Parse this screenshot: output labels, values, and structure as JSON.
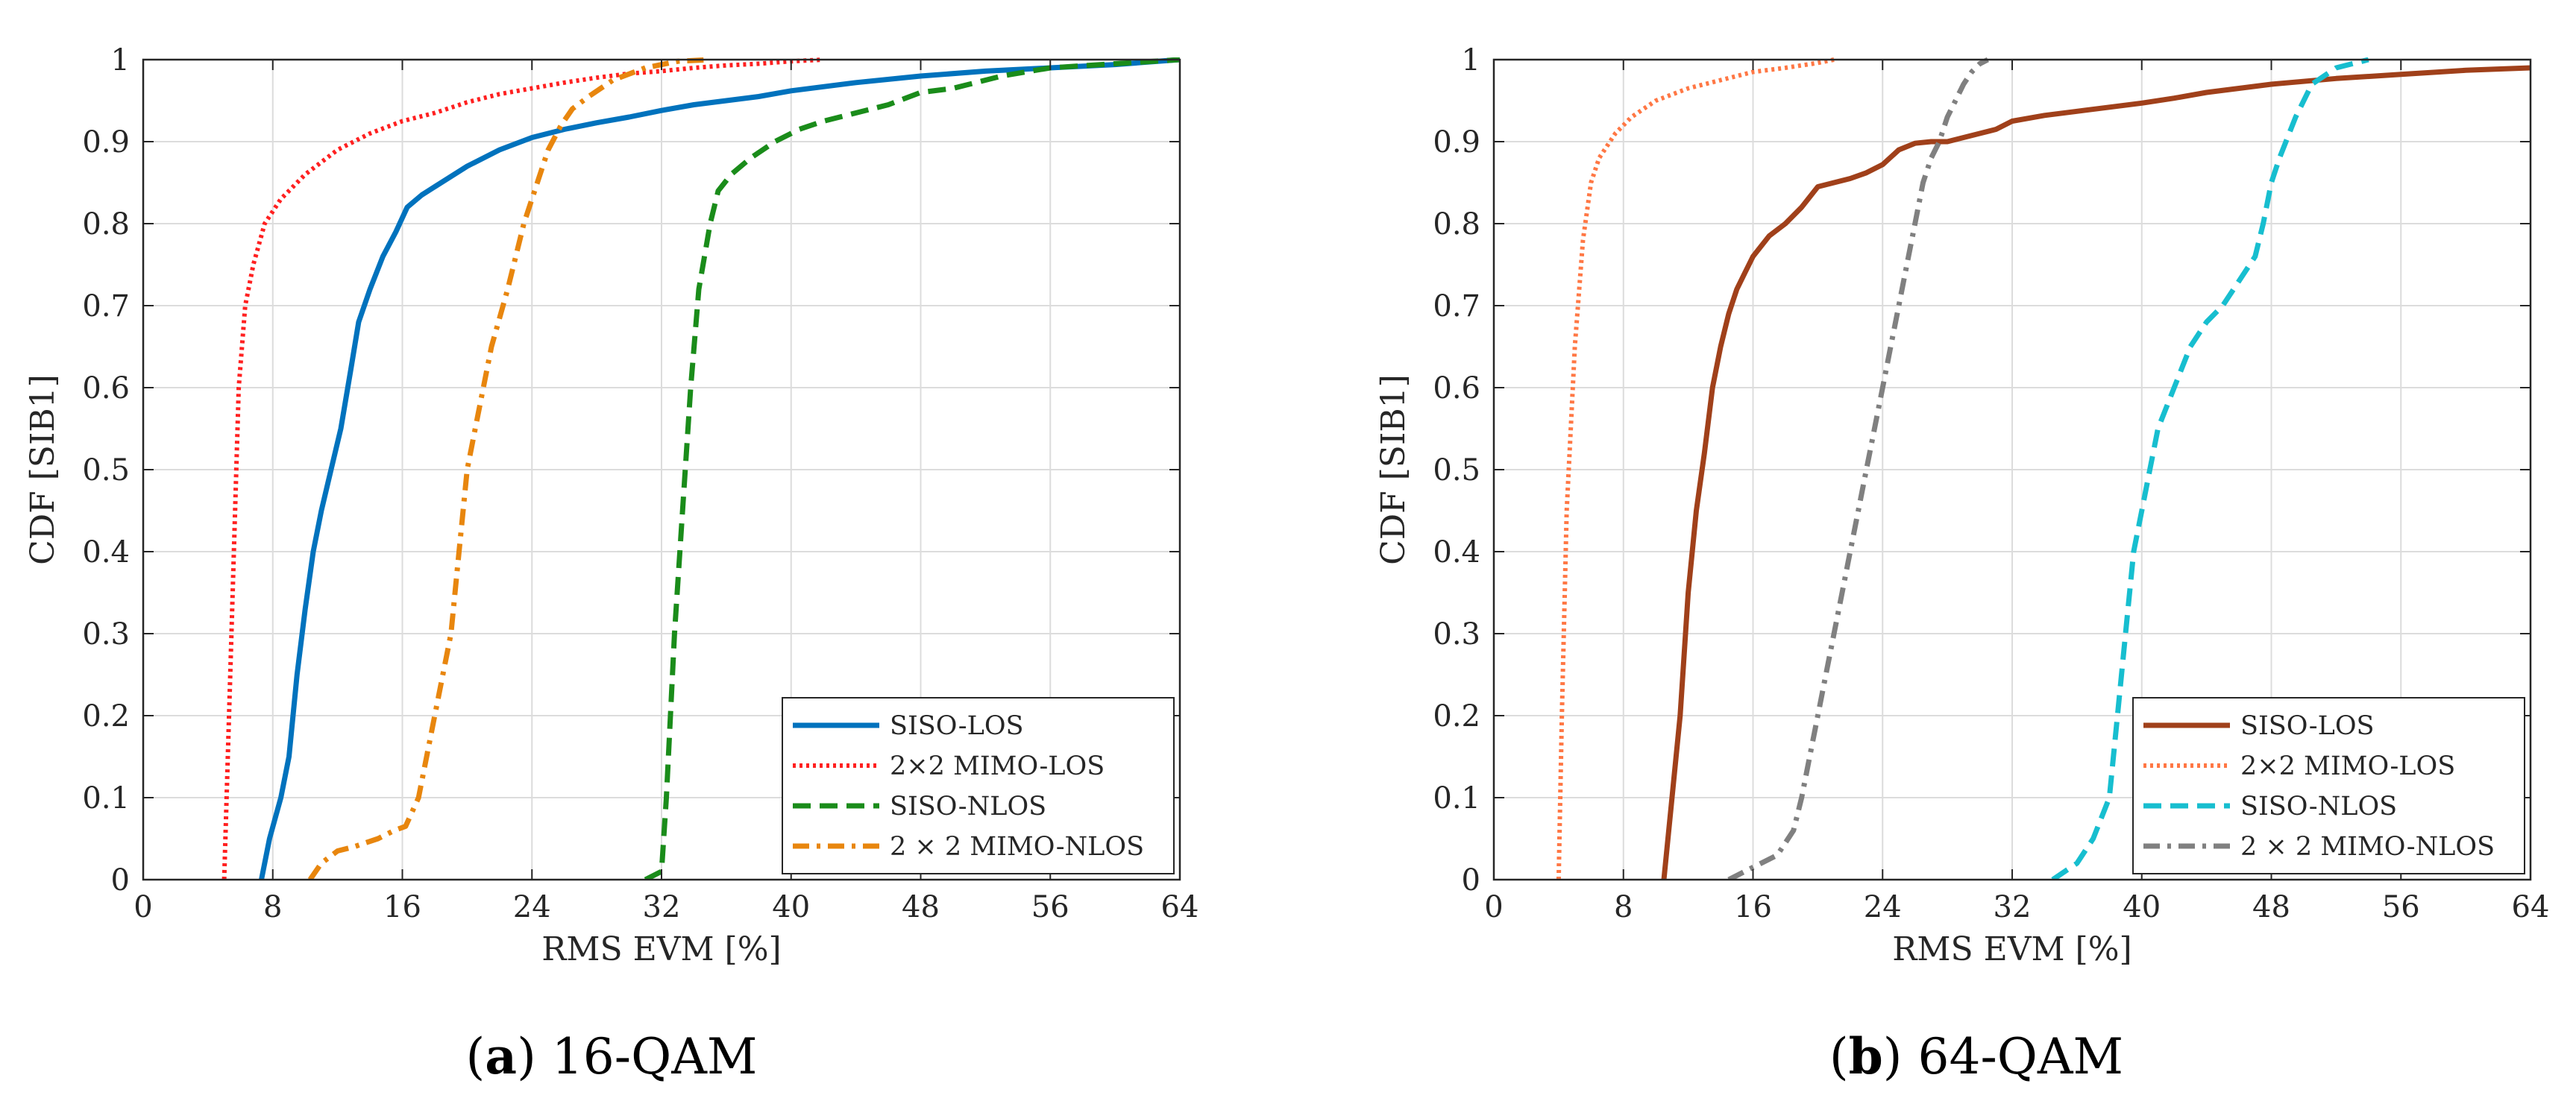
{
  "chart_data": [
    {
      "type": "line",
      "caption": {
        "letter": "a",
        "text": "16-QAM"
      },
      "xlabel": "RMS EVM [%]",
      "ylabel": "CDF [SIB1]",
      "xlim": [
        0,
        64
      ],
      "ylim": [
        0,
        1
      ],
      "xticks": [
        0,
        8,
        16,
        24,
        32,
        40,
        48,
        56,
        64
      ],
      "yticks": [
        0,
        0.1,
        0.2,
        0.3,
        0.4,
        0.5,
        0.6,
        0.7,
        0.8,
        0.9,
        1
      ],
      "grid": true,
      "legend": "bottom-right",
      "series": [
        {
          "name": "SISO-LOS",
          "color": "#0072BD",
          "dash": "solid",
          "x": [
            7.3,
            7.8,
            8.5,
            9.0,
            9.5,
            10.0,
            10.5,
            11.0,
            11.6,
            12.2,
            12.8,
            13.3,
            14.0,
            14.8,
            15.6,
            16.3,
            17.2,
            18.0,
            20.0,
            22.0,
            24.0,
            26.0,
            28.0,
            30.0,
            32.0,
            34.0,
            36.0,
            38.0,
            40.0,
            44.0,
            48.0,
            52.0,
            56.0,
            60.0,
            64.0
          ],
          "y": [
            0,
            0.05,
            0.1,
            0.15,
            0.25,
            0.33,
            0.4,
            0.45,
            0.5,
            0.55,
            0.62,
            0.68,
            0.72,
            0.76,
            0.79,
            0.82,
            0.835,
            0.845,
            0.87,
            0.89,
            0.905,
            0.915,
            0.923,
            0.93,
            0.938,
            0.945,
            0.95,
            0.955,
            0.962,
            0.972,
            0.98,
            0.986,
            0.99,
            0.994,
            1.0
          ]
        },
        {
          "name": "2×2 MIMO-LOS",
          "color": "#FF2020",
          "dash": "dotted",
          "x": [
            5.0,
            5.3,
            5.6,
            5.9,
            6.3,
            6.8,
            7.5,
            8.5,
            10.0,
            12.0,
            14.0,
            16.0,
            18.0,
            20.0,
            22.0,
            24.0,
            26.0,
            28.0,
            30.0,
            32.0,
            34.0,
            36.0,
            38.0,
            40.0,
            42.0
          ],
          "y": [
            0,
            0.2,
            0.4,
            0.6,
            0.7,
            0.75,
            0.8,
            0.83,
            0.86,
            0.89,
            0.91,
            0.925,
            0.935,
            0.948,
            0.958,
            0.965,
            0.972,
            0.978,
            0.983,
            0.986,
            0.99,
            0.993,
            0.995,
            0.998,
            1.0
          ]
        },
        {
          "name": "SISO-NLOS",
          "color": "#1A8C1A",
          "dash": "dashed",
          "x": [
            31.0,
            32.0,
            32.3,
            32.8,
            33.3,
            33.8,
            34.3,
            35.0,
            35.5,
            36.3,
            37.5,
            39.0,
            40.5,
            42.0,
            44.0,
            46.0,
            48.0,
            50.0,
            51.0,
            53.0,
            56.0,
            60.0,
            64.0
          ],
          "y": [
            0,
            0.01,
            0.1,
            0.3,
            0.45,
            0.6,
            0.72,
            0.8,
            0.84,
            0.86,
            0.88,
            0.9,
            0.915,
            0.925,
            0.935,
            0.945,
            0.96,
            0.965,
            0.97,
            0.98,
            0.99,
            0.995,
            1.0
          ]
        },
        {
          "name": "2 × 2 MIMO-NLOS",
          "color": "#E8860E",
          "dash": "dashdot",
          "x": [
            10.3,
            11.0,
            12.0,
            13.0,
            14.5,
            15.5,
            16.2,
            17.0,
            18.0,
            19.0,
            19.5,
            20.0,
            20.5,
            21.0,
            21.5,
            22.5,
            23.5,
            24.5,
            25.0,
            25.8,
            26.5,
            27.5,
            29.0,
            31.0,
            33.0,
            35.0
          ],
          "y": [
            0,
            0.02,
            0.035,
            0.04,
            0.05,
            0.06,
            0.065,
            0.1,
            0.2,
            0.3,
            0.4,
            0.5,
            0.55,
            0.6,
            0.65,
            0.72,
            0.8,
            0.86,
            0.89,
            0.92,
            0.94,
            0.955,
            0.975,
            0.99,
            0.998,
            1.0
          ]
        }
      ]
    },
    {
      "type": "line",
      "caption": {
        "letter": "b",
        "text": "64-QAM"
      },
      "xlabel": "RMS EVM [%]",
      "ylabel": "CDF [SIB1]",
      "xlim": [
        0,
        64
      ],
      "ylim": [
        0,
        1
      ],
      "xticks": [
        0,
        8,
        16,
        24,
        32,
        40,
        48,
        56,
        64
      ],
      "yticks": [
        0,
        0.1,
        0.2,
        0.3,
        0.4,
        0.5,
        0.6,
        0.7,
        0.8,
        0.9,
        1
      ],
      "grid": true,
      "legend": "bottom-right",
      "series": [
        {
          "name": "SISO-LOS",
          "color": "#A0401A",
          "dash": "solid",
          "x": [
            10.5,
            11.0,
            11.5,
            12.0,
            12.5,
            13.0,
            13.5,
            14.0,
            14.5,
            15.0,
            15.5,
            16.0,
            17.0,
            18.0,
            19.0,
            20.0,
            21.0,
            22.0,
            23.0,
            24.0,
            25.0,
            26.0,
            27.0,
            28.0,
            29.0,
            30.0,
            31.0,
            32.0,
            34.0,
            36.0,
            38.0,
            40.0,
            42.0,
            44.0,
            46.0,
            48.0,
            52.0,
            56.0,
            60.0,
            64.0
          ],
          "y": [
            0,
            0.1,
            0.2,
            0.35,
            0.45,
            0.52,
            0.6,
            0.65,
            0.69,
            0.72,
            0.74,
            0.76,
            0.785,
            0.8,
            0.82,
            0.845,
            0.85,
            0.855,
            0.862,
            0.872,
            0.89,
            0.898,
            0.9,
            0.9,
            0.905,
            0.91,
            0.915,
            0.925,
            0.932,
            0.937,
            0.942,
            0.947,
            0.953,
            0.96,
            0.965,
            0.97,
            0.977,
            0.982,
            0.987,
            0.99
          ]
        },
        {
          "name": "2×2 MIMO-LOS",
          "color": "#FF7744",
          "dash": "dotted",
          "x": [
            4.0,
            4.2,
            4.5,
            5.0,
            5.5,
            6.0,
            6.5,
            7.5,
            8.5,
            10.0,
            12.0,
            14.0,
            16.0,
            18.0,
            20.0,
            21.0
          ],
          "y": [
            0,
            0.2,
            0.45,
            0.65,
            0.78,
            0.85,
            0.88,
            0.91,
            0.93,
            0.95,
            0.965,
            0.975,
            0.985,
            0.99,
            0.996,
            1.0
          ]
        },
        {
          "name": "SISO-NLOS",
          "color": "#17BECF",
          "dash": "dashed",
          "x": [
            34.5,
            36.0,
            37.0,
            38.0,
            38.5,
            39.0,
            39.5,
            40.0,
            40.5,
            41.0,
            42.0,
            43.0,
            44.0,
            45.0,
            46.0,
            47.0,
            47.5,
            48.0,
            48.5,
            49.5,
            50.5,
            52.0,
            54.0
          ],
          "y": [
            0,
            0.02,
            0.05,
            0.1,
            0.2,
            0.3,
            0.4,
            0.45,
            0.5,
            0.55,
            0.6,
            0.65,
            0.68,
            0.7,
            0.73,
            0.76,
            0.8,
            0.85,
            0.88,
            0.93,
            0.97,
            0.99,
            1.0
          ]
        },
        {
          "name": "2 × 2 MIMO-NLOS",
          "color": "#808080",
          "dash": "dashdot",
          "x": [
            14.5,
            15.5,
            16.5,
            17.5,
            18.5,
            19.0,
            19.5,
            20.0,
            20.5,
            21.0,
            21.5,
            22.0,
            22.5,
            23.0,
            23.5,
            24.0,
            24.5,
            25.0,
            25.5,
            26.0,
            26.5,
            27.0,
            27.5,
            28.0,
            28.5,
            29.0,
            29.5,
            30.0,
            30.5
          ],
          "y": [
            0,
            0.01,
            0.02,
            0.03,
            0.06,
            0.1,
            0.15,
            0.2,
            0.25,
            0.3,
            0.35,
            0.4,
            0.45,
            0.5,
            0.55,
            0.6,
            0.65,
            0.7,
            0.75,
            0.8,
            0.85,
            0.88,
            0.9,
            0.93,
            0.95,
            0.97,
            0.985,
            0.995,
            1.0
          ]
        }
      ]
    }
  ]
}
